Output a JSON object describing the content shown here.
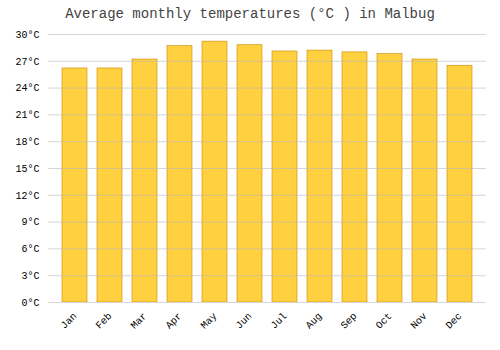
{
  "chart_data": {
    "type": "bar",
    "title": "Average monthly temperatures (°C ) in Malbug",
    "categories": [
      "Jan",
      "Feb",
      "Mar",
      "Apr",
      "May",
      "Jun",
      "Jul",
      "Aug",
      "Sep",
      "Oct",
      "Nov",
      "Dec"
    ],
    "values": [
      26.2,
      26.2,
      27.2,
      28.7,
      29.2,
      28.8,
      28.1,
      28.2,
      28.0,
      27.8,
      27.2,
      26.5
    ],
    "color": "#FFD040",
    "ylim": [
      0,
      30
    ],
    "yticks": [
      {
        "value": 0,
        "label": "0°C"
      },
      {
        "value": 3,
        "label": "3°C"
      },
      {
        "value": 6,
        "label": "6°C"
      },
      {
        "value": 9,
        "label": "9°C"
      },
      {
        "value": 12,
        "label": "12°C"
      },
      {
        "value": 15,
        "label": "15°C"
      },
      {
        "value": 18,
        "label": "18°C"
      },
      {
        "value": 21,
        "label": "21°C"
      },
      {
        "value": 24,
        "label": "24°C"
      },
      {
        "value": 27,
        "label": "27°C"
      },
      {
        "value": 30,
        "label": "30°C"
      }
    ],
    "grid": true
  }
}
